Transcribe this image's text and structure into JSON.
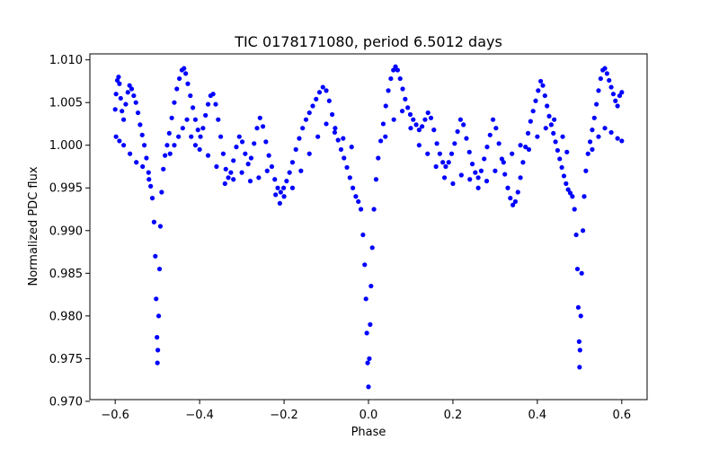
{
  "chart_data": {
    "type": "scatter",
    "title": "TIC 0178171080, period 6.5012 days",
    "xlabel": "Phase",
    "ylabel": "Normalized PDC flux",
    "xlim": [
      -0.66,
      0.66
    ],
    "ylim": [
      0.9702,
      1.0107
    ],
    "x_ticks": [
      -0.6,
      -0.4,
      -0.2,
      0.0,
      0.2,
      0.4,
      0.6
    ],
    "x_tick_labels": [
      "−0.6",
      "−0.4",
      "−0.2",
      "0.0",
      "0.2",
      "0.4",
      "0.6"
    ],
    "y_ticks": [
      0.97,
      0.975,
      0.98,
      0.985,
      0.99,
      0.995,
      1.0,
      1.005,
      1.01
    ],
    "y_tick_labels": [
      "0.970",
      "0.975",
      "0.980",
      "0.985",
      "0.990",
      "0.995",
      "1.000",
      "1.005",
      "1.010"
    ],
    "marker_color": "#0000ff",
    "grid": false,
    "series": [
      {
        "marker": "circle",
        "points": [
          [
            -0.6,
            1.0042
          ],
          [
            -0.598,
            1.006
          ],
          [
            -0.595,
            1.0076
          ],
          [
            -0.592,
            1.008
          ],
          [
            -0.59,
            1.0072
          ],
          [
            -0.587,
            1.0055
          ],
          [
            -0.584,
            1.004
          ],
          [
            -0.58,
            1.003
          ],
          [
            -0.575,
            1.0048
          ],
          [
            -0.57,
            1.0062
          ],
          [
            -0.566,
            1.007
          ],
          [
            -0.561,
            1.0066
          ],
          [
            -0.556,
            1.0058
          ],
          [
            -0.551,
            1.005
          ],
          [
            -0.546,
            1.0038
          ],
          [
            -0.541,
            1.0024
          ],
          [
            -0.536,
            1.0012
          ],
          [
            -0.531,
            1.0
          ],
          [
            -0.526,
            0.9985
          ],
          [
            -0.521,
            0.9968
          ],
          [
            -0.516,
            0.9952
          ],
          [
            -0.512,
            0.9938
          ],
          [
            -0.508,
            0.991
          ],
          [
            -0.505,
            0.987
          ],
          [
            -0.503,
            0.982
          ],
          [
            -0.501,
            0.9775
          ],
          [
            -0.5,
            0.9745
          ],
          [
            -0.499,
            0.976
          ],
          [
            -0.497,
            0.98
          ],
          [
            -0.495,
            0.9855
          ],
          [
            -0.493,
            0.9905
          ],
          [
            -0.49,
            0.9945
          ],
          [
            -0.486,
            0.9972
          ],
          [
            -0.482,
            0.9988
          ],
          [
            -0.477,
            1.0
          ],
          [
            -0.472,
            1.0014
          ],
          [
            -0.466,
            1.0032
          ],
          [
            -0.46,
            1.005
          ],
          [
            -0.454,
            1.0066
          ],
          [
            -0.448,
            1.0078
          ],
          [
            -0.442,
            1.0088
          ],
          [
            -0.437,
            1.009
          ],
          [
            -0.433,
            1.0084
          ],
          [
            -0.428,
            1.0072
          ],
          [
            -0.422,
            1.0058
          ],
          [
            -0.416,
            1.0044
          ],
          [
            -0.41,
            1.003
          ],
          [
            -0.404,
            1.0018
          ],
          [
            -0.398,
            1.001
          ],
          [
            -0.392,
            1.002
          ],
          [
            -0.386,
            1.0035
          ],
          [
            -0.38,
            1.0048
          ],
          [
            -0.374,
            1.0058
          ],
          [
            -0.368,
            1.006
          ],
          [
            -0.362,
            1.0048
          ],
          [
            -0.356,
            1.003
          ],
          [
            -0.35,
            1.001
          ],
          [
            -0.344,
            0.999
          ],
          [
            -0.338,
            0.9972
          ],
          [
            -0.332,
            0.9962
          ],
          [
            -0.326,
            0.9968
          ],
          [
            -0.32,
            0.9982
          ],
          [
            -0.313,
            0.9998
          ],
          [
            -0.306,
            1.001
          ],
          [
            -0.299,
            1.0004
          ],
          [
            -0.292,
            0.999
          ],
          [
            -0.285,
            0.9978
          ],
          [
            -0.278,
            0.9985
          ],
          [
            -0.271,
            1.0002
          ],
          [
            -0.264,
            1.002
          ],
          [
            -0.257,
            1.0032
          ],
          [
            -0.25,
            1.0022
          ],
          [
            -0.243,
            1.0004
          ],
          [
            -0.236,
            0.9988
          ],
          [
            -0.229,
            0.9975
          ],
          [
            -0.222,
            0.996
          ],
          [
            -0.215,
            0.995
          ],
          [
            -0.208,
            0.9945
          ],
          [
            -0.201,
            0.995
          ],
          [
            -0.194,
            0.9958
          ],
          [
            -0.187,
            0.9968
          ],
          [
            -0.18,
            0.998
          ],
          [
            -0.172,
            0.9995
          ],
          [
            -0.164,
            1.0008
          ],
          [
            -0.156,
            1.002
          ],
          [
            -0.148,
            1.003
          ],
          [
            -0.14,
            1.0038
          ],
          [
            -0.132,
            1.0046
          ],
          [
            -0.124,
            1.0054
          ],
          [
            -0.116,
            1.0062
          ],
          [
            -0.108,
            1.0068
          ],
          [
            -0.1,
            1.0064
          ],
          [
            -0.093,
            1.0052
          ],
          [
            -0.086,
            1.0036
          ],
          [
            -0.079,
            1.002
          ],
          [
            -0.072,
            1.0006
          ],
          [
            -0.065,
            0.9995
          ],
          [
            -0.058,
            0.9985
          ],
          [
            -0.051,
            0.9974
          ],
          [
            -0.044,
            0.9962
          ],
          [
            -0.037,
            0.995
          ],
          [
            -0.03,
            0.994
          ],
          [
            -0.024,
            0.9934
          ],
          [
            -0.018,
            0.9925
          ],
          [
            -0.013,
            0.9895
          ],
          [
            -0.009,
            0.986
          ],
          [
            -0.006,
            0.982
          ],
          [
            -0.004,
            0.978
          ],
          [
            -0.002,
            0.9745
          ],
          [
            0.0,
            0.9717
          ],
          [
            0.002,
            0.975
          ],
          [
            0.004,
            0.979
          ],
          [
            0.006,
            0.9835
          ],
          [
            0.009,
            0.988
          ],
          [
            0.013,
            0.9925
          ],
          [
            0.018,
            0.996
          ],
          [
            0.023,
            0.9985
          ],
          [
            0.029,
            1.0005
          ],
          [
            0.035,
            1.0025
          ],
          [
            0.041,
            1.0046
          ],
          [
            0.047,
            1.0064
          ],
          [
            0.053,
            1.0078
          ],
          [
            0.059,
            1.0088
          ],
          [
            0.064,
            1.0092
          ],
          [
            0.069,
            1.0088
          ],
          [
            0.075,
            1.0078
          ],
          [
            0.081,
            1.0066
          ],
          [
            0.087,
            1.0054
          ],
          [
            0.093,
            1.0044
          ],
          [
            0.099,
            1.0036
          ],
          [
            0.106,
            1.003
          ],
          [
            0.113,
            1.0024
          ],
          [
            0.12,
            1.0018
          ],
          [
            0.127,
            1.0022
          ],
          [
            0.134,
            1.003
          ],
          [
            0.141,
            1.0038
          ],
          [
            0.148,
            1.0032
          ],
          [
            0.155,
            1.0018
          ],
          [
            0.162,
            1.0002
          ],
          [
            0.169,
            0.999
          ],
          [
            0.176,
            0.998
          ],
          [
            0.183,
            0.9975
          ],
          [
            0.19,
            0.998
          ],
          [
            0.197,
            0.999
          ],
          [
            0.204,
            1.0002
          ],
          [
            0.211,
            1.0016
          ],
          [
            0.218,
            1.003
          ],
          [
            0.225,
            1.0024
          ],
          [
            0.232,
            1.0008
          ],
          [
            0.239,
            0.9992
          ],
          [
            0.246,
            0.9978
          ],
          [
            0.253,
            0.9968
          ],
          [
            0.26,
            0.9962
          ],
          [
            0.267,
            0.997
          ],
          [
            0.274,
            0.9984
          ],
          [
            0.281,
            0.9998
          ],
          [
            0.288,
            1.0012
          ],
          [
            0.295,
            1.003
          ],
          [
            0.302,
            1.002
          ],
          [
            0.309,
            1.0002
          ],
          [
            0.316,
            0.9984
          ],
          [
            0.323,
            0.9966
          ],
          [
            0.33,
            0.995
          ],
          [
            0.336,
            0.9938
          ],
          [
            0.342,
            0.993
          ],
          [
            0.348,
            0.9934
          ],
          [
            0.354,
            0.9945
          ],
          [
            0.36,
            0.9962
          ],
          [
            0.366,
            0.998
          ],
          [
            0.372,
            0.9998
          ],
          [
            0.378,
            1.0014
          ],
          [
            0.384,
            1.0028
          ],
          [
            0.39,
            1.004
          ],
          [
            0.396,
            1.0052
          ],
          [
            0.402,
            1.0064
          ],
          [
            0.408,
            1.0075
          ],
          [
            0.413,
            1.007
          ],
          [
            0.418,
            1.0058
          ],
          [
            0.423,
            1.0046
          ],
          [
            0.428,
            1.0034
          ],
          [
            0.433,
            1.0024
          ],
          [
            0.438,
            1.0014
          ],
          [
            0.443,
            1.0004
          ],
          [
            0.448,
            0.9994
          ],
          [
            0.453,
            0.9984
          ],
          [
            0.458,
            0.9974
          ],
          [
            0.463,
            0.9964
          ],
          [
            0.468,
            0.9955
          ],
          [
            0.473,
            0.9948
          ],
          [
            0.478,
            0.9944
          ],
          [
            0.483,
            0.994
          ],
          [
            0.488,
            0.9925
          ],
          [
            0.492,
            0.9895
          ],
          [
            0.495,
            0.9855
          ],
          [
            0.497,
            0.981
          ],
          [
            0.499,
            0.977
          ],
          [
            0.5,
            0.974
          ],
          [
            0.501,
            0.976
          ],
          [
            0.503,
            0.98
          ],
          [
            0.505,
            0.985
          ],
          [
            0.508,
            0.99
          ],
          [
            0.511,
            0.994
          ],
          [
            0.515,
            0.997
          ],
          [
            0.52,
            0.999
          ],
          [
            0.525,
            1.0004
          ],
          [
            0.53,
            1.0018
          ],
          [
            0.535,
            1.0032
          ],
          [
            0.54,
            1.0048
          ],
          [
            0.545,
            1.0064
          ],
          [
            0.55,
            1.0078
          ],
          [
            0.555,
            1.0088
          ],
          [
            0.56,
            1.009
          ],
          [
            0.565,
            1.0084
          ],
          [
            0.57,
            1.0076
          ],
          [
            0.575,
            1.0068
          ],
          [
            0.58,
            1.006
          ],
          [
            0.585,
            1.0052
          ],
          [
            0.59,
            1.0046
          ],
          [
            0.595,
            1.0058
          ],
          [
            0.6,
            1.0062
          ],
          [
            -0.598,
            1.001
          ],
          [
            -0.59,
            1.0005
          ],
          [
            -0.58,
            1.0
          ],
          [
            -0.565,
            0.999
          ],
          [
            -0.55,
            0.998
          ],
          [
            -0.535,
            0.9975
          ],
          [
            -0.52,
            0.996
          ],
          [
            -0.47,
            0.999
          ],
          [
            -0.46,
            1.0
          ],
          [
            -0.45,
            1.001
          ],
          [
            -0.44,
            1.002
          ],
          [
            -0.43,
            1.003
          ],
          [
            -0.42,
            1.001
          ],
          [
            -0.41,
            1.0
          ],
          [
            -0.4,
            0.9995
          ],
          [
            -0.38,
            0.9988
          ],
          [
            -0.36,
            0.9975
          ],
          [
            -0.34,
            0.9955
          ],
          [
            -0.32,
            0.996
          ],
          [
            -0.3,
            0.9968
          ],
          [
            -0.28,
            0.9958
          ],
          [
            -0.26,
            0.9962
          ],
          [
            -0.24,
            0.997
          ],
          [
            -0.22,
            0.9942
          ],
          [
            -0.21,
            0.9932
          ],
          [
            -0.2,
            0.994
          ],
          [
            -0.18,
            0.995
          ],
          [
            -0.16,
            0.997
          ],
          [
            -0.14,
            0.999
          ],
          [
            -0.12,
            1.001
          ],
          [
            -0.1,
            1.0025
          ],
          [
            -0.08,
            1.0015
          ],
          [
            -0.06,
            1.0008
          ],
          [
            -0.04,
            0.9998
          ],
          [
            0.04,
            1.001
          ],
          [
            0.06,
            1.003
          ],
          [
            0.08,
            1.004
          ],
          [
            0.1,
            1.002
          ],
          [
            0.12,
            1.0
          ],
          [
            0.14,
            0.999
          ],
          [
            0.16,
            0.9975
          ],
          [
            0.18,
            0.9962
          ],
          [
            0.2,
            0.9955
          ],
          [
            0.22,
            0.9965
          ],
          [
            0.24,
            0.996
          ],
          [
            0.26,
            0.995
          ],
          [
            0.28,
            0.9958
          ],
          [
            0.3,
            0.997
          ],
          [
            0.32,
            0.998
          ],
          [
            0.34,
            0.999
          ],
          [
            0.36,
            1.0
          ],
          [
            0.38,
            0.9995
          ],
          [
            0.4,
            1.001
          ],
          [
            0.42,
            1.002
          ],
          [
            0.44,
            1.003
          ],
          [
            0.46,
            1.001
          ],
          [
            0.47,
            0.9992
          ],
          [
            0.53,
            0.9995
          ],
          [
            0.545,
            1.001
          ],
          [
            0.56,
            1.002
          ],
          [
            0.575,
            1.0015
          ],
          [
            0.59,
            1.0008
          ],
          [
            0.6,
            1.0005
          ]
        ]
      }
    ]
  }
}
